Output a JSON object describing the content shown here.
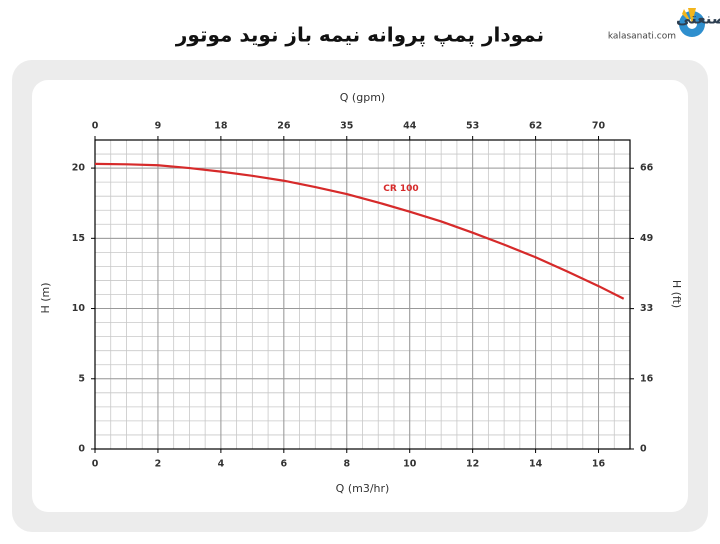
{
  "header": {
    "title": "نمودار پمپ پروانه نیمه باز نوید موتور",
    "logo_name": "کالاصنعتی",
    "logo_url": "kalasanati.com"
  },
  "chart_data": {
    "type": "line",
    "xlabel": "Q (m3/hr)",
    "x2label": "Q (gpm)",
    "ylabel": "H (m)",
    "y2label": "H (ft)",
    "x": [
      0,
      1,
      2,
      3,
      4,
      5,
      6,
      7,
      8,
      9,
      10,
      11,
      12,
      13,
      14,
      15,
      16,
      16.8
    ],
    "series": [
      {
        "name": "CR 100",
        "color": "#d62a2a",
        "values": [
          20.3,
          20.27,
          20.2,
          20.0,
          19.75,
          19.45,
          19.1,
          18.65,
          18.15,
          17.55,
          16.9,
          16.2,
          15.4,
          14.55,
          13.65,
          12.65,
          11.6,
          10.7
        ]
      }
    ],
    "xlim": [
      0,
      17
    ],
    "xticks": [
      0,
      2,
      4,
      6,
      8,
      10,
      12,
      14,
      16
    ],
    "x2lim": [
      0,
      74.8
    ],
    "x2ticks": [
      {
        "value": 0,
        "label": "0"
      },
      {
        "value": 8.8,
        "label": "9"
      },
      {
        "value": 17.6,
        "label": "18"
      },
      {
        "value": 26.4,
        "label": "26"
      },
      {
        "value": 35.2,
        "label": "35"
      },
      {
        "value": 44.0,
        "label": "44"
      },
      {
        "value": 52.8,
        "label": "53"
      },
      {
        "value": 61.6,
        "label": "62"
      },
      {
        "value": 70.4,
        "label": "70"
      }
    ],
    "ylim": [
      0,
      22
    ],
    "yticks": [
      0,
      5,
      10,
      15,
      20
    ],
    "y2lim": [
      0,
      72.2
    ],
    "y2ticks": [
      {
        "value": 0,
        "label": "0"
      },
      {
        "value": 16.4,
        "label": "16"
      },
      {
        "value": 32.8,
        "label": "33"
      },
      {
        "value": 49.2,
        "label": "49"
      },
      {
        "value": 65.6,
        "label": "66"
      }
    ],
    "grid": true,
    "minor_grid": {
      "x": 0.5,
      "y": 1
    }
  }
}
